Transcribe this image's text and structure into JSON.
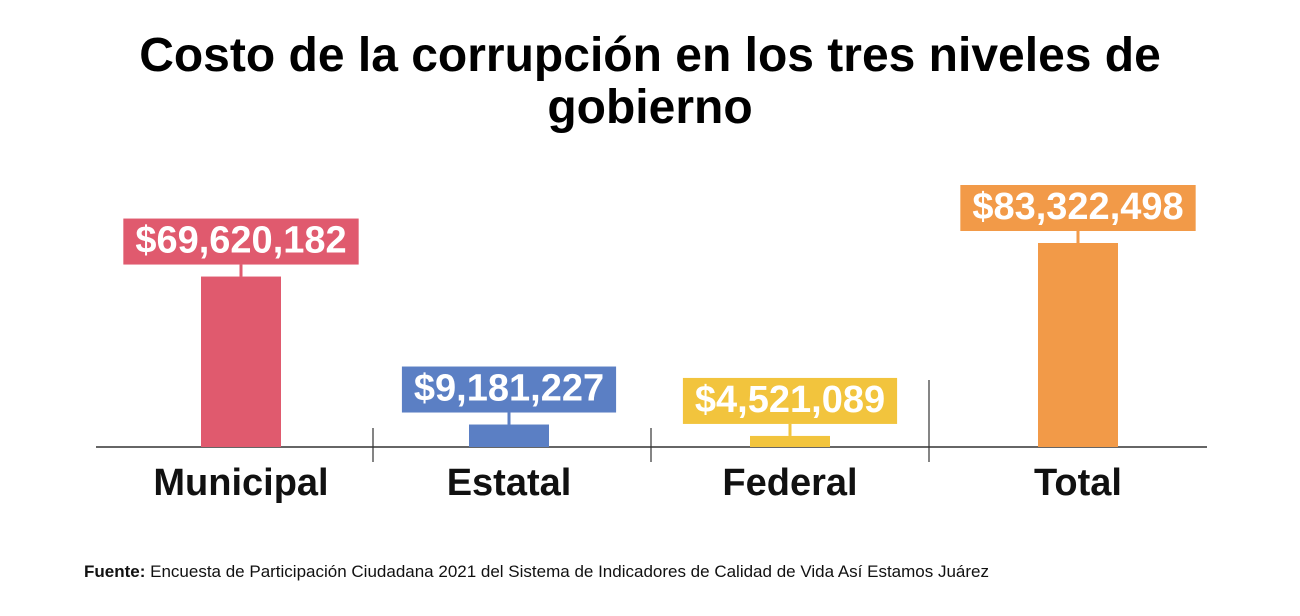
{
  "title": {
    "line1": "Costo de la corrupción en los tres niveles de",
    "line2": "gobierno"
  },
  "chart_data": {
    "type": "bar",
    "title": "Costo de la corrupción en los tres niveles de gobierno",
    "xlabel": "",
    "ylabel": "",
    "ylim": [
      0,
      90000000
    ],
    "grid": false,
    "categories": [
      "Municipal",
      "Estatal",
      "Federal",
      "Total"
    ],
    "values": [
      69620182,
      9181227,
      4521089,
      83322498
    ],
    "value_labels": [
      "$69,620,182",
      "$9,181,227",
      "$4,521,089",
      "$83,322,498"
    ],
    "colors": [
      "#e05a6e",
      "#5b7fc4",
      "#f2c43d",
      "#f29a48"
    ]
  },
  "source": {
    "label": "Fuente:",
    "text": " Encuesta de Participación Ciudadana 2021 del Sistema de Indicadores de Calidad de Vida Así Estamos Juárez"
  }
}
